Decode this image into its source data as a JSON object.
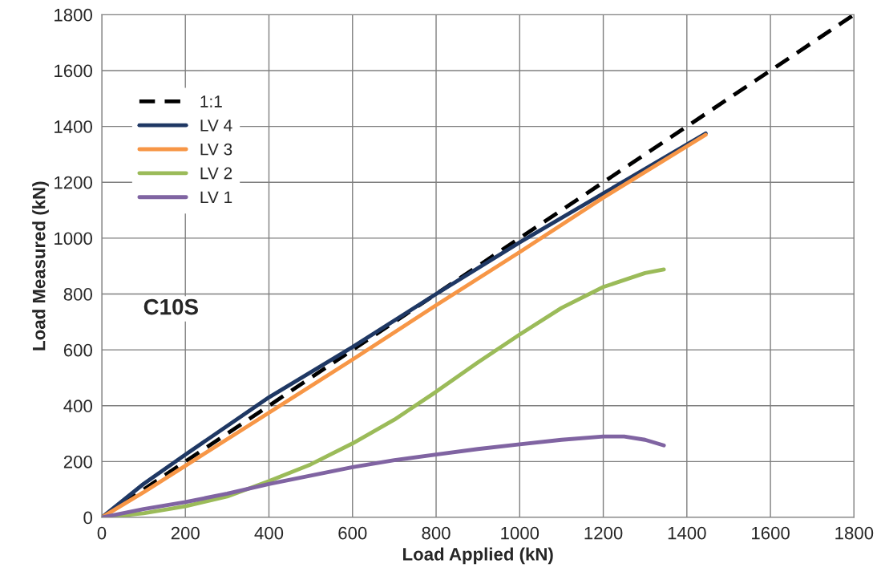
{
  "chart_data": {
    "type": "line",
    "xlabel": "Load Applied (kN)",
    "ylabel": "Load Measured (kN)",
    "annotations": [
      "C10S"
    ],
    "xlim": [
      0,
      1800
    ],
    "ylim": [
      0,
      1800
    ],
    "xticks": [
      0,
      200,
      400,
      600,
      800,
      1000,
      1200,
      1400,
      1600,
      1800
    ],
    "yticks": [
      0,
      200,
      400,
      600,
      800,
      1000,
      1200,
      1400,
      1600,
      1800
    ],
    "grid": true,
    "legend": "top left",
    "series": [
      {
        "name": "1:1",
        "color": "#000000",
        "line_style": "dashed",
        "x": [
          0,
          1800
        ],
        "values": [
          0,
          1800
        ]
      },
      {
        "name": "LV 4",
        "color": "#1f3864",
        "line_style": "solid",
        "x": [
          0,
          100,
          200,
          400,
          600,
          800,
          1000,
          1200,
          1445
        ],
        "values": [
          0,
          120,
          225,
          430,
          610,
          800,
          985,
          1160,
          1375
        ]
      },
      {
        "name": "LV 3",
        "color": "#f79646",
        "line_style": "solid",
        "x": [
          0,
          100,
          200,
          400,
          600,
          800,
          1000,
          1200,
          1445
        ],
        "values": [
          0,
          90,
          185,
          375,
          565,
          760,
          950,
          1145,
          1370
        ]
      },
      {
        "name": "LV 2",
        "color": "#9bbb59",
        "line_style": "solid",
        "x": [
          0,
          100,
          200,
          300,
          400,
          500,
          600,
          700,
          800,
          900,
          1000,
          1100,
          1200,
          1300,
          1345
        ],
        "values": [
          0,
          15,
          40,
          75,
          130,
          190,
          265,
          350,
          450,
          555,
          655,
          750,
          825,
          875,
          888
        ]
      },
      {
        "name": "LV 1",
        "color": "#8064a2",
        "line_style": "solid",
        "x": [
          0,
          100,
          200,
          300,
          400,
          500,
          600,
          700,
          800,
          900,
          1000,
          1100,
          1200,
          1250,
          1300,
          1345
        ],
        "values": [
          0,
          30,
          55,
          85,
          120,
          150,
          180,
          205,
          225,
          245,
          262,
          278,
          290,
          290,
          278,
          258
        ]
      }
    ]
  }
}
